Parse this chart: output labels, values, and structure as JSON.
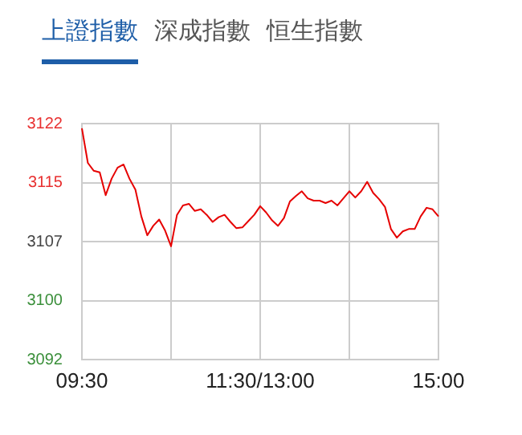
{
  "chart_data": {
    "type": "line",
    "title": "上證指數",
    "annotations": [
      "深成指數",
      "恒生指數"
    ],
    "categories": [
      "09:30",
      null,
      null,
      null,
      null,
      null,
      null,
      null,
      null,
      null,
      null,
      null,
      null,
      null,
      null,
      null,
      null,
      null,
      null,
      null,
      null,
      null,
      null,
      null,
      null,
      null,
      null,
      null,
      null,
      null,
      "11:30/13:00",
      null,
      null,
      null,
      null,
      null,
      null,
      null,
      null,
      null,
      null,
      null,
      null,
      null,
      null,
      null,
      null,
      null,
      null,
      null,
      null,
      null,
      null,
      null,
      null,
      null,
      null,
      null,
      null,
      null,
      "15:00"
    ],
    "series": [
      {
        "color": "#e60000",
        "values": [
          3121.4,
          3117,
          3116,
          3115.8,
          3112.9,
          3115,
          3116.4,
          3116.8,
          3115,
          3113.6,
          3110.2,
          3107.8,
          3109,
          3109.8,
          3108.4,
          3106.4,
          3110.4,
          3111.6,
          3111.8,
          3110.9,
          3111.1,
          3110.4,
          3109.5,
          3110.1,
          3110.4,
          3109.5,
          3108.7,
          3108.8,
          3109.6,
          3110.4,
          3111.5,
          3110.7,
          3109.7,
          3109,
          3110,
          3112.1,
          3112.8,
          3113.4,
          3112.5,
          3112.2,
          3112.2,
          3111.9,
          3112.2,
          3111.6,
          3112.5,
          3113.4,
          3112.6,
          3113.4,
          3114.6,
          3113.2,
          3112.4,
          3111.4,
          3108.6,
          3107.5,
          3108.3,
          3108.6,
          3108.6,
          3110.2,
          3111.3,
          3111.1,
          3110.2
        ]
      }
    ],
    "ylim": [
      3092,
      3122
    ],
    "yticks": [
      3092,
      {
        "value": 3099.5,
        "label": "3100"
      },
      3107,
      {
        "value": 3114.5,
        "label": "3115"
      },
      3122
    ],
    "grid": true,
    "legend": false,
    "marker": "none",
    "line_style": "solid"
  }
}
